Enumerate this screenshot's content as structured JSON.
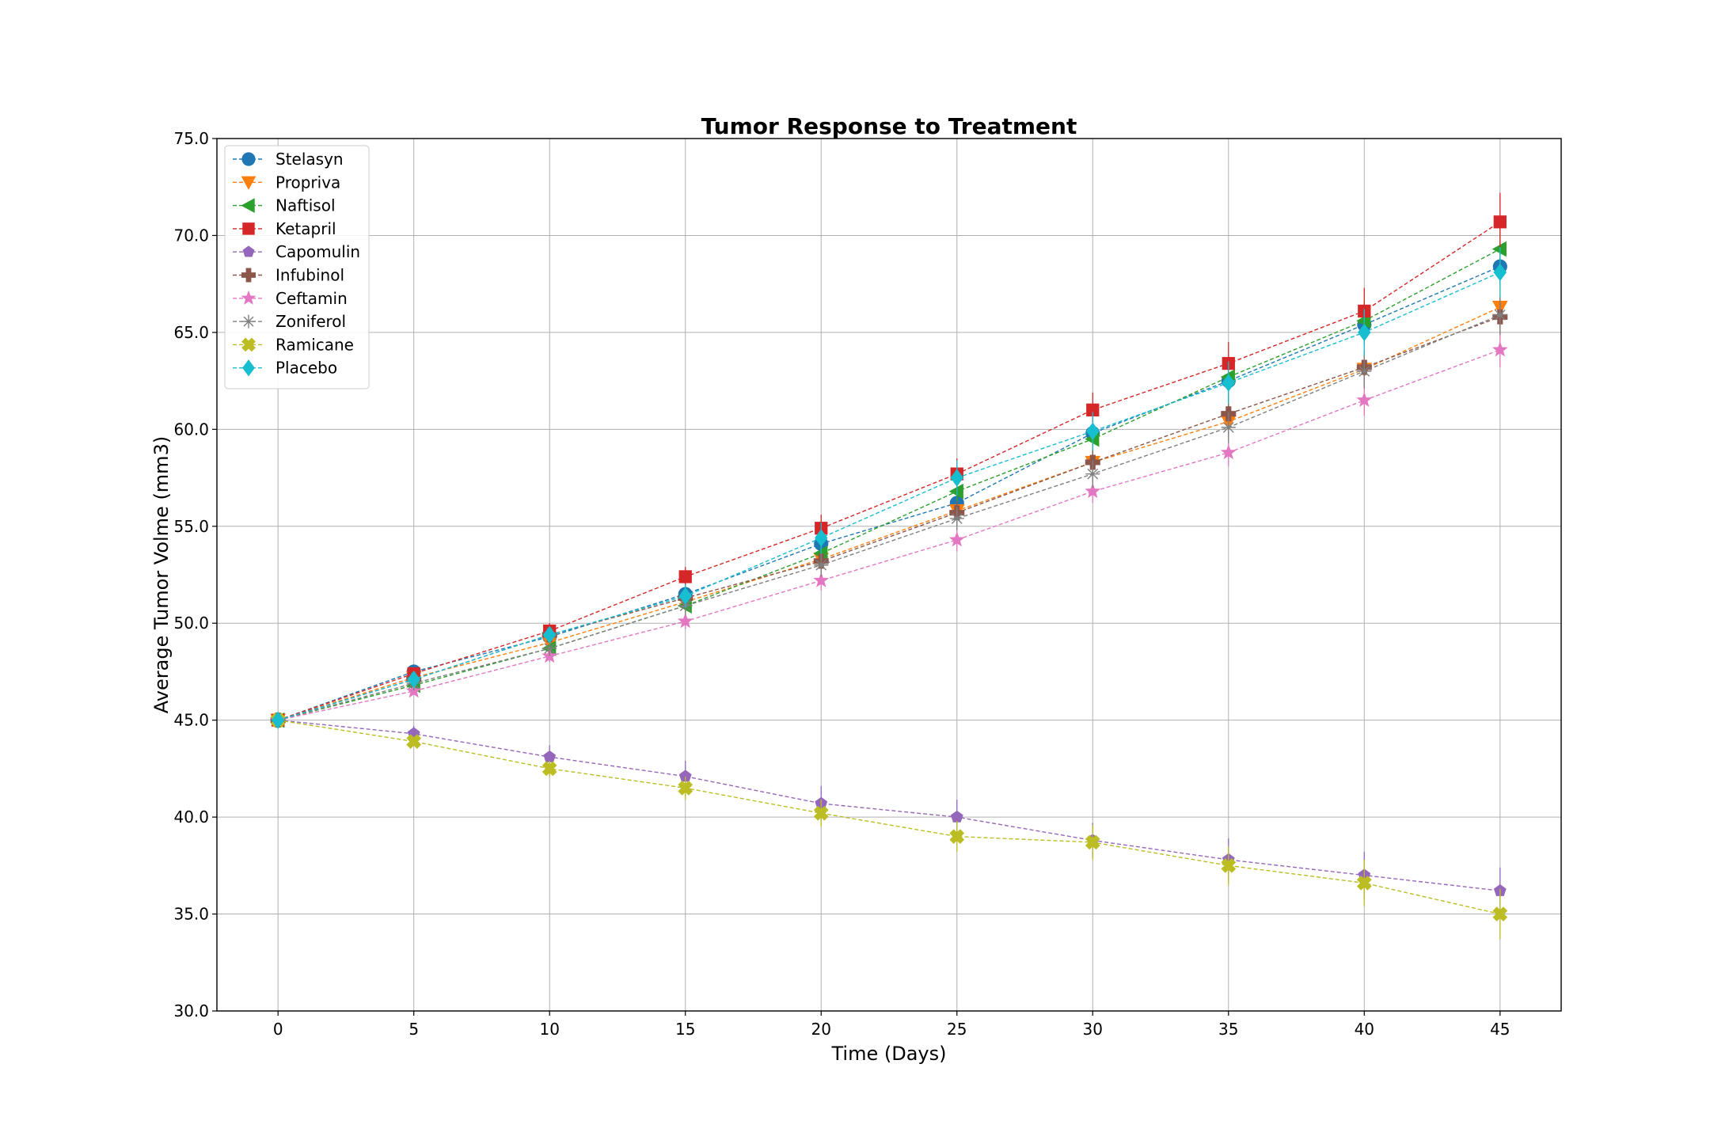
{
  "chart_data": {
    "type": "line",
    "title": "Tumor Response to Treatment",
    "xlabel": "Time (Days)",
    "ylabel": "Average Tumor Volme (mm3)",
    "xlim": [
      -2.25,
      47.25
    ],
    "ylim": [
      30.0,
      75.0
    ],
    "xticks": [
      "0",
      "5",
      "10",
      "15",
      "20",
      "25",
      "30",
      "35",
      "40",
      "45"
    ],
    "yticks": [
      "30.0",
      "35.0",
      "40.0",
      "45.0",
      "50.0",
      "55.0",
      "60.0",
      "65.0",
      "70.0",
      "75.0"
    ],
    "grid": true,
    "legend_position": "upper-left",
    "x": [
      0,
      5,
      10,
      15,
      20,
      25,
      30,
      35,
      40,
      45
    ],
    "series": [
      {
        "name": "Stelasyn",
        "color": "#1f77b4",
        "marker": "circle",
        "values": [
          45.0,
          47.5,
          49.3,
          51.5,
          54.1,
          56.2,
          59.8,
          62.5,
          65.4,
          68.4
        ],
        "errors": [
          0,
          0.2,
          0.4,
          0.6,
          0.7,
          0.8,
          0.9,
          1.0,
          1.1,
          1.2
        ]
      },
      {
        "name": "Propriva",
        "color": "#ff7f0e",
        "marker": "triangle-down",
        "values": [
          45.0,
          47.2,
          49.0,
          51.1,
          53.3,
          55.8,
          58.3,
          60.4,
          63.1,
          66.3
        ],
        "errors": [
          0,
          0.2,
          0.4,
          0.5,
          0.6,
          0.7,
          0.8,
          0.9,
          1.0,
          1.2
        ]
      },
      {
        "name": "Naftisol",
        "color": "#2ca02c",
        "marker": "triangle-left",
        "values": [
          45.0,
          46.8,
          48.7,
          50.9,
          53.6,
          56.8,
          59.5,
          62.7,
          65.6,
          69.3
        ],
        "errors": [
          0,
          0.2,
          0.4,
          0.5,
          0.6,
          0.7,
          0.8,
          0.9,
          1.0,
          1.3
        ]
      },
      {
        "name": "Ketapril",
        "color": "#d62728",
        "marker": "square",
        "values": [
          45.0,
          47.4,
          49.6,
          52.4,
          54.9,
          57.7,
          61.0,
          63.4,
          66.1,
          70.7
        ],
        "errors": [
          0,
          0.2,
          0.4,
          0.5,
          0.7,
          0.8,
          0.9,
          1.1,
          1.2,
          1.5
        ]
      },
      {
        "name": "Capomulin",
        "color": "#9467bd",
        "marker": "pentagon",
        "values": [
          45.0,
          44.3,
          43.1,
          42.1,
          40.7,
          40.0,
          38.8,
          37.8,
          37.0,
          36.2
        ],
        "errors": [
          0,
          0.4,
          0.6,
          0.8,
          0.9,
          0.9,
          0.9,
          1.1,
          1.2,
          1.2
        ]
      },
      {
        "name": "Infubinol",
        "color": "#8c564b",
        "marker": "plus",
        "values": [
          45.0,
          47.1,
          49.4,
          51.3,
          53.2,
          55.7,
          58.3,
          60.8,
          63.2,
          65.8
        ],
        "errors": [
          0,
          0.2,
          0.4,
          0.5,
          0.6,
          0.6,
          0.7,
          0.8,
          0.9,
          1.0
        ]
      },
      {
        "name": "Ceftamin",
        "color": "#e377c2",
        "marker": "star",
        "values": [
          45.0,
          46.5,
          48.3,
          50.1,
          52.2,
          54.3,
          56.8,
          58.8,
          61.5,
          64.1
        ],
        "errors": [
          0,
          0.2,
          0.3,
          0.4,
          0.5,
          0.6,
          0.6,
          0.7,
          0.8,
          0.9
        ]
      },
      {
        "name": "Zoniferol",
        "color": "#7f7f7f",
        "marker": "asterisk",
        "values": [
          45.0,
          46.9,
          48.7,
          50.9,
          53.0,
          55.4,
          57.7,
          60.1,
          63.0,
          65.9
        ],
        "errors": [
          0,
          0.2,
          0.4,
          0.5,
          0.6,
          0.6,
          0.7,
          0.8,
          0.9,
          1.0
        ]
      },
      {
        "name": "Ramicane",
        "color": "#bcbd22",
        "marker": "x-filled",
        "values": [
          45.0,
          43.9,
          42.5,
          41.5,
          40.2,
          39.0,
          38.7,
          37.5,
          36.6,
          35.0
        ],
        "errors": [
          0,
          0.2,
          0.4,
          0.6,
          0.7,
          0.8,
          0.9,
          1.0,
          1.2,
          1.3
        ]
      },
      {
        "name": "Placebo",
        "color": "#17becf",
        "marker": "diamond",
        "values": [
          45.0,
          47.1,
          49.4,
          51.4,
          54.4,
          57.5,
          59.9,
          62.4,
          65.0,
          68.1
        ],
        "errors": [
          0,
          0.2,
          0.4,
          0.6,
          0.8,
          0.9,
          1.0,
          1.1,
          1.2,
          1.3
        ]
      }
    ]
  }
}
